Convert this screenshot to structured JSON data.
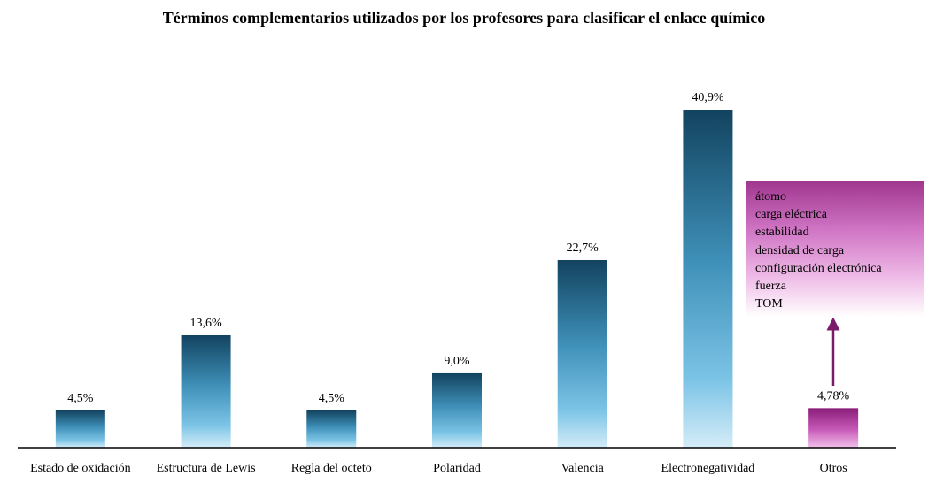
{
  "chart_data": {
    "type": "bar",
    "title": "Términos complementarios utilizados por los profesores para clasificar el enlace químico",
    "categories": [
      "Estado de oxidación",
      "Estructura de Lewis",
      "Regla del octeto",
      "Polaridad",
      "Valencia",
      "Electronegatividad",
      "Otros"
    ],
    "values": [
      4.5,
      13.6,
      4.5,
      9.0,
      22.7,
      40.9,
      4.78
    ],
    "data_labels": [
      "4,5%",
      "13,6%",
      "4,5%",
      "9,0%",
      "22,7%",
      "40,9%",
      "4,78%"
    ],
    "ylim": [
      0,
      40.9
    ],
    "xlabel": "",
    "ylabel": "",
    "grid": false,
    "colors": {
      "bar_top": "#12435f",
      "bar_mid": "#3f90b9",
      "bar_bottom": "#d4ecf8",
      "highlight_top": "#8a1d78",
      "highlight_bottom": "#f2c0ea",
      "arrow": "#7b1a6b"
    }
  },
  "otros_terms": [
    "átomo",
    "carga eléctrica",
    "estabilidad",
    "densidad de carga",
    "configuración electrónica",
    "fuerza",
    "TOM"
  ]
}
